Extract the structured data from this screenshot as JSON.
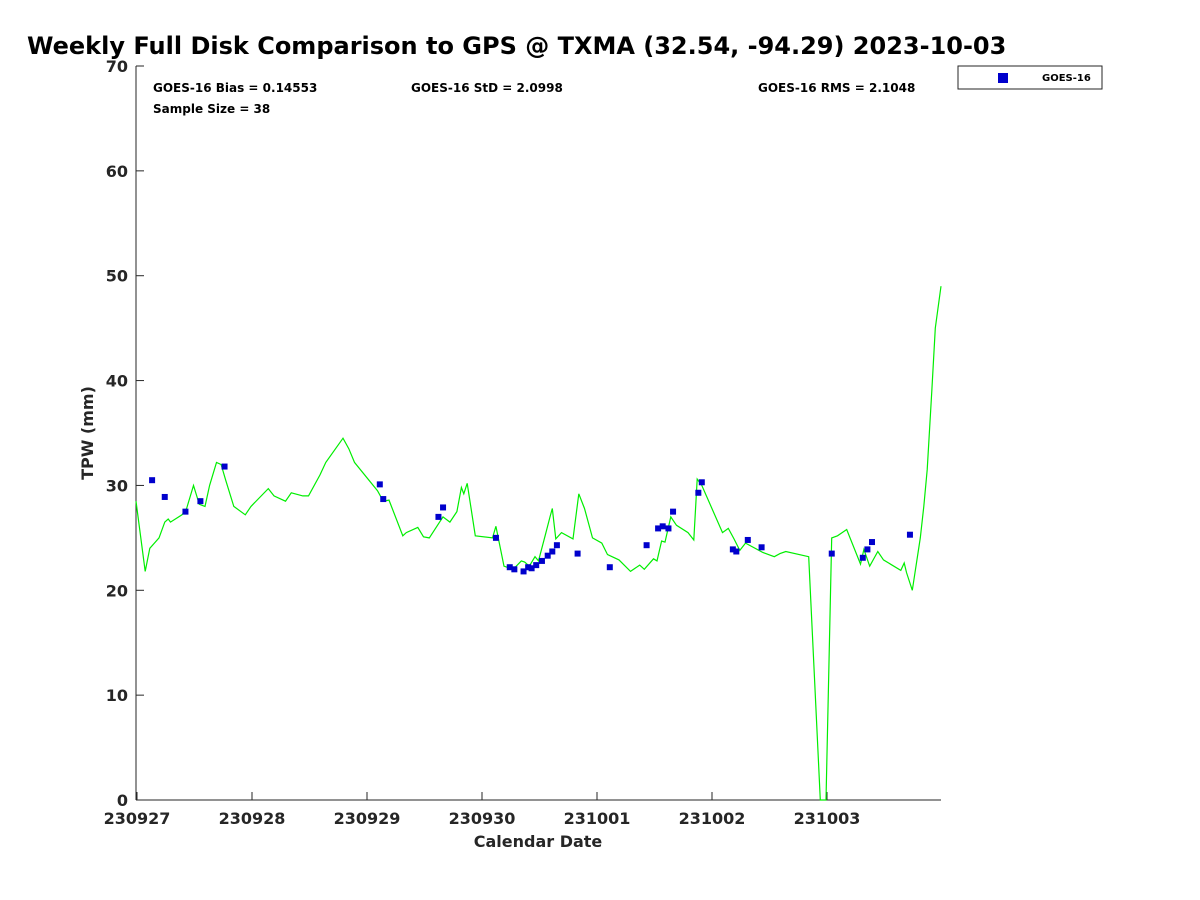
{
  "chart_data": {
    "type": "scatter",
    "title": "Weekly Full Disk Comparison to GPS @ TXMA (32.54, -94.29) 2023-10-03",
    "xlabel": "Calendar Date",
    "ylabel": "TPW (mm)",
    "xlim": [
      0,
      7
    ],
    "ylim": [
      0,
      70
    ],
    "x_tick_labels": [
      "230927",
      "230928",
      "230929",
      "230930",
      "231001",
      "231002",
      "231003"
    ],
    "x_unit": "days since 230927 00Z",
    "y_ticks": [
      0,
      10,
      20,
      30,
      40,
      50,
      60,
      70
    ],
    "grid": false,
    "legend": {
      "position": "outside-top-right",
      "entries": [
        "GOES-16"
      ]
    },
    "stats": {
      "bias": "GOES-16 Bias = 0.14553",
      "std": "GOES-16 StD = 2.0998",
      "rms": "GOES-16 RMS = 2.1048",
      "sample": "Sample Size = 38"
    },
    "colors": {
      "goes16": "#0000cc",
      "gps": "#00ee00",
      "axis": "#262626"
    },
    "series": [
      {
        "name": "GOES-16",
        "marker": "square",
        "x": [
          0.14,
          0.25,
          0.43,
          0.56,
          0.77,
          2.12,
          2.15,
          2.63,
          2.67,
          3.13,
          3.25,
          3.29,
          3.37,
          3.41,
          3.44,
          3.48,
          3.53,
          3.58,
          3.62,
          3.66,
          3.84,
          4.12,
          4.44,
          4.54,
          4.58,
          4.63,
          4.67,
          4.89,
          4.92,
          5.19,
          5.22,
          5.32,
          5.44,
          6.05,
          6.32,
          6.36,
          6.4,
          6.73
        ],
        "y": [
          30.5,
          28.9,
          27.5,
          28.5,
          31.8,
          30.1,
          28.7,
          27.0,
          27.9,
          25.0,
          22.2,
          22.0,
          21.8,
          22.2,
          22.1,
          22.4,
          22.8,
          23.3,
          23.7,
          24.3,
          23.5,
          22.2,
          24.3,
          25.9,
          26.1,
          25.9,
          27.5,
          29.3,
          30.3,
          23.9,
          23.7,
          24.8,
          24.1,
          23.5,
          23.1,
          23.9,
          24.6,
          25.3
        ]
      },
      {
        "name": "GPS",
        "marker": "line",
        "x": [
          0.0,
          0.08,
          0.12,
          0.16,
          0.2,
          0.25,
          0.28,
          0.3,
          0.4,
          0.44,
          0.5,
          0.55,
          0.6,
          0.64,
          0.7,
          0.74,
          0.78,
          0.85,
          0.95,
          1.0,
          1.15,
          1.2,
          1.3,
          1.35,
          1.45,
          1.5,
          1.6,
          1.65,
          1.8,
          1.85,
          1.9,
          2.1,
          2.15,
          2.2,
          2.32,
          2.35,
          2.45,
          2.5,
          2.55,
          2.64,
          2.67,
          2.73,
          2.79,
          2.83,
          2.85,
          2.88,
          2.95,
          3.1,
          3.13,
          3.2,
          3.28,
          3.35,
          3.38,
          3.42,
          3.47,
          3.5,
          3.56,
          3.6,
          3.62,
          3.65,
          3.7,
          3.8,
          3.85,
          3.9,
          3.97,
          4.05,
          4.1,
          4.2,
          4.3,
          4.38,
          4.42,
          4.5,
          4.53,
          4.57,
          4.6,
          4.65,
          4.7,
          4.8,
          4.85,
          4.88,
          4.92,
          5.1,
          5.15,
          5.2,
          5.25,
          5.3,
          5.45,
          5.55,
          5.6,
          5.65,
          5.85,
          5.95,
          6.0,
          6.05,
          6.1,
          6.18,
          6.3,
          6.33,
          6.38,
          6.45,
          6.5,
          6.65,
          6.68,
          6.7,
          6.75,
          6.82,
          6.85,
          6.88,
          6.92,
          6.95,
          7.0
        ],
        "y": [
          28.5,
          21.8,
          24.0,
          24.5,
          25.0,
          26.5,
          26.8,
          26.5,
          27.2,
          27.8,
          30.0,
          28.2,
          28.0,
          30.0,
          32.2,
          32.0,
          30.5,
          28.0,
          27.2,
          28.0,
          29.7,
          29.0,
          28.5,
          29.3,
          29.0,
          29.0,
          31.0,
          32.2,
          34.5,
          33.5,
          32.2,
          29.5,
          28.5,
          28.6,
          25.2,
          25.5,
          26.0,
          25.1,
          25.0,
          26.5,
          27.0,
          26.5,
          27.5,
          29.8,
          29.2,
          30.2,
          25.2,
          25.0,
          26.1,
          22.3,
          22.0,
          22.8,
          22.7,
          22.3,
          23.2,
          22.8,
          25.3,
          27.0,
          27.8,
          24.9,
          25.5,
          24.9,
          29.2,
          27.8,
          25.0,
          24.5,
          23.4,
          22.9,
          21.8,
          22.4,
          22.0,
          23.0,
          22.8,
          24.7,
          24.6,
          27.0,
          26.2,
          25.5,
          24.8,
          30.6,
          30.0,
          25.5,
          25.9,
          24.9,
          23.8,
          24.5,
          23.6,
          23.2,
          23.5,
          23.7,
          23.2,
          0.0,
          0.0,
          25.0,
          25.2,
          25.8,
          22.5,
          23.9,
          22.3,
          23.7,
          22.9,
          21.9,
          22.6,
          21.7,
          20.0,
          25.0,
          28.0,
          31.5,
          39.0,
          45.0,
          49.0
        ]
      }
    ]
  }
}
